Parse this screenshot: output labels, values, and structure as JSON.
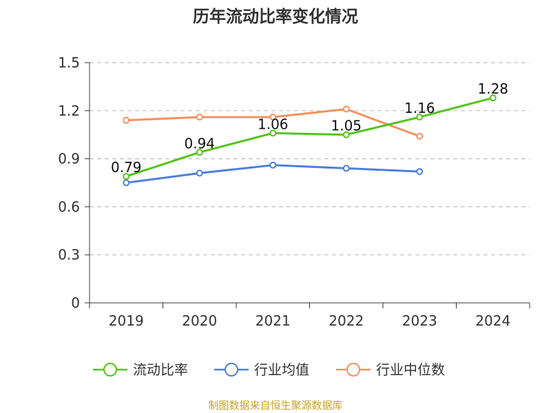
{
  "chart_data": {
    "type": "line",
    "title": "历年流动比率变化情况",
    "categories": [
      "2019",
      "2020",
      "2021",
      "2022",
      "2023",
      "2024"
    ],
    "ylim": [
      0,
      1.5
    ],
    "yticks": [
      "0",
      "0.3",
      "0.6",
      "0.9",
      "1.2",
      "1.5"
    ],
    "ytick_values": [
      0,
      0.3,
      0.6,
      0.9,
      1.2,
      1.5
    ],
    "grid": true,
    "legend_position": "bottom-center",
    "series": [
      {
        "name": "流动比率",
        "color": "#52c41a",
        "values": [
          0.79,
          0.94,
          1.06,
          1.05,
          1.16,
          1.28
        ],
        "labels": [
          "0.79",
          "0.94",
          "1.06",
          "1.05",
          "1.16",
          "1.28"
        ]
      },
      {
        "name": "行业均值",
        "color": "#4e7fd9",
        "values": [
          0.75,
          0.81,
          0.86,
          0.84,
          0.82,
          null
        ],
        "labels": []
      },
      {
        "name": "行业中位数",
        "color": "#f6905a",
        "values": [
          1.14,
          1.16,
          1.16,
          1.21,
          1.04,
          null
        ],
        "labels": []
      }
    ],
    "source": "制图数据来自恒生聚源数据库"
  }
}
